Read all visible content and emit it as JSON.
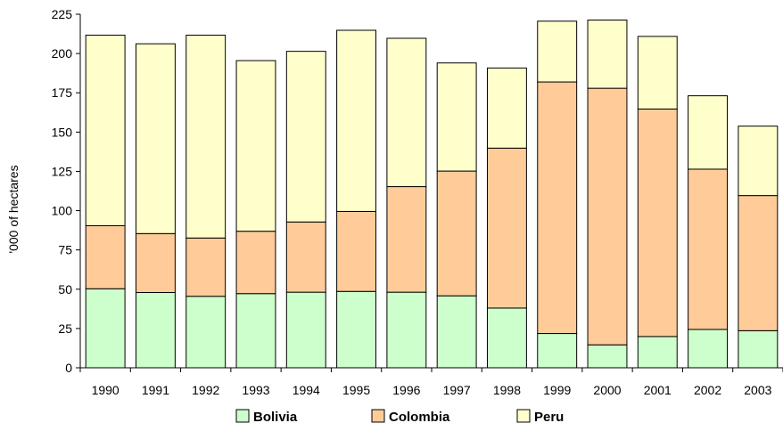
{
  "chart_data": {
    "type": "bar",
    "stacked": true,
    "categories": [
      "1990",
      "1991",
      "1992",
      "1993",
      "1994",
      "1995",
      "1996",
      "1997",
      "1998",
      "1999",
      "2000",
      "2001",
      "2002",
      "2003"
    ],
    "series": [
      {
        "name": "Bolivia",
        "color": "#ccffcc",
        "values": [
          50.3,
          47.9,
          45.5,
          47.2,
          48.1,
          48.6,
          48.1,
          45.8,
          38.0,
          21.8,
          14.6,
          19.9,
          24.4,
          23.6
        ]
      },
      {
        "name": "Colombia",
        "color": "#ffcc99",
        "values": [
          40.1,
          37.5,
          37.1,
          39.7,
          44.7,
          50.9,
          67.2,
          79.4,
          101.8,
          160.1,
          163.3,
          144.8,
          102.0,
          86.0
        ]
      },
      {
        "name": "Peru",
        "color": "#ffffcc",
        "values": [
          121.3,
          120.8,
          129.1,
          108.6,
          108.6,
          115.3,
          94.4,
          68.8,
          51.0,
          38.7,
          43.4,
          46.2,
          46.7,
          44.2
        ]
      }
    ],
    "title": "",
    "xlabel": "",
    "ylabel": "'000 of hectares",
    "ylim": [
      0,
      225
    ],
    "yticks": [
      "0",
      "25",
      "50",
      "75",
      "100",
      "125",
      "150",
      "175",
      "200",
      "225"
    ],
    "grid": false,
    "legend_position": "bottom"
  }
}
